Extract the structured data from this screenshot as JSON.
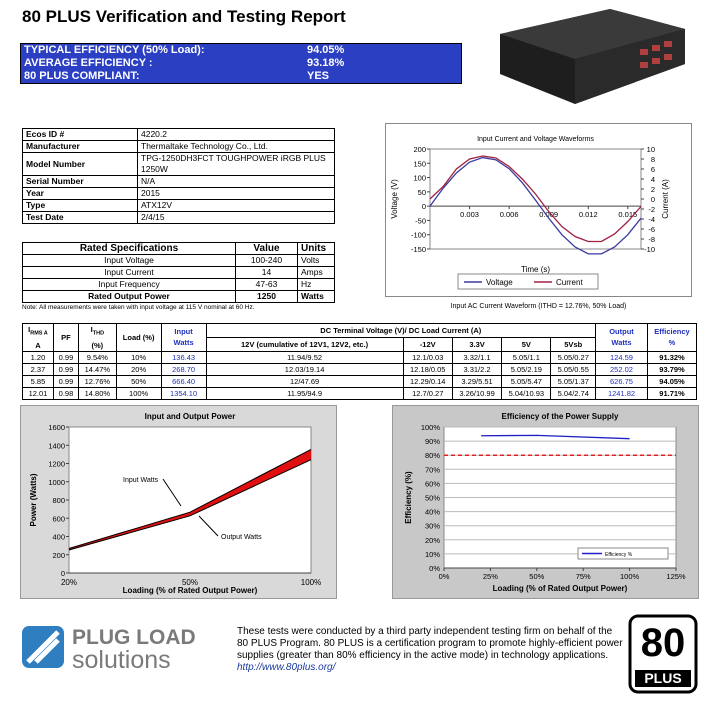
{
  "header": {
    "title": "80 PLUS Verification and Testing Report"
  },
  "summary": {
    "rows": [
      [
        "TYPICAL EFFICIENCY (50% Load):",
        "94.05%"
      ],
      [
        "AVERAGE EFFICIENCY :",
        "93.18%"
      ],
      [
        "80 PLUS COMPLIANT:",
        "YES"
      ]
    ]
  },
  "info_table": {
    "rows": [
      [
        "Ecos ID #",
        "4220.2"
      ],
      [
        "Manufacturer",
        "Thermaltake Technology Co., Ltd."
      ],
      [
        "Model Number",
        "TPG-1250DH3FCT TOUGHPOWER iRGB PLUS 1250W"
      ],
      [
        "Serial Number",
        "N/A"
      ],
      [
        "Year",
        "2015"
      ],
      [
        "Type",
        "ATX12V"
      ],
      [
        "Test Date",
        "2/4/15"
      ]
    ]
  },
  "rated_table": {
    "header": [
      "Rated Specifications",
      "Value",
      "Units"
    ],
    "rows": [
      [
        "Input Voltage",
        "100-240",
        "Volts"
      ],
      [
        "Input Current",
        "14",
        "Amps"
      ],
      [
        "Input Frequency",
        "47-63",
        "Hz"
      ],
      [
        "Rated Output Power",
        "1250",
        "Watts"
      ]
    ]
  },
  "note": "Note: All measurements were taken with input voltage at 115 V nominal at 60 Hz.",
  "waveform_caption": "Input AC Current Waveform (ITHD = 12.76%, 50% Load)",
  "test_table": {
    "head": {
      "irms": {
        "symbol": "I",
        "sub": "RMS A",
        "unit": "A"
      },
      "pf": "PF",
      "ithd": {
        "symbol": "I",
        "sub": "THD",
        "unit": "(%)"
      },
      "load": "Load (%)",
      "input": "Input Watts",
      "dc_group": "DC Terminal Voltage (V)/ DC Load Current (A)",
      "dc": [
        "12V (cumulative of 12V1, 12V2, etc.)",
        "-12V",
        "3.3V",
        "5V",
        "5Vsb"
      ],
      "output": "Output Watts",
      "efficiency": "Efficiency %"
    },
    "rows": [
      [
        "1.20",
        "0.99",
        "9.54%",
        "10%",
        "136.43",
        "11.94/9.52",
        "12.1/0.03",
        "3.32/1.1",
        "5.05/1.1",
        "5.05/0.27",
        "124.59",
        "91.32%"
      ],
      [
        "2.37",
        "0.99",
        "14.47%",
        "20%",
        "268.70",
        "12.03/19.14",
        "12.18/0.05",
        "3.31/2.2",
        "5.05/2.19",
        "5.05/0.55",
        "252.02",
        "93.79%"
      ],
      [
        "5.85",
        "0.99",
        "12.76%",
        "50%",
        "666.40",
        "12/47.69",
        "12.29/0.14",
        "3.29/5.51",
        "5.05/5.47",
        "5.05/1.37",
        "626.75",
        "94.05%"
      ],
      [
        "12.01",
        "0.98",
        "14.80%",
        "100%",
        "1354.10",
        "11.95/94.9",
        "12.7/0.27",
        "3.26/10.99",
        "5.04/10.93",
        "5.04/2.74",
        "1241.82",
        "91.71%"
      ]
    ]
  },
  "chart_data": [
    {
      "type": "line",
      "title": "Input Current and Voltage Waveforms",
      "x_label": "Time (s)",
      "y_label": "Voltage (V)",
      "y2_label": "Current (A)",
      "x": [
        0,
        0.001,
        0.002,
        0.003,
        0.004,
        0.005,
        0.006,
        0.007,
        0.008,
        0.009,
        0.01,
        0.011,
        0.012,
        0.013,
        0.014,
        0.015,
        0.016
      ],
      "xlim": [
        0,
        0.016
      ],
      "xticks": [
        0.003,
        0.006,
        0.009,
        0.012,
        0.015
      ],
      "ylim": [
        -150,
        200
      ],
      "yticks": [
        -150,
        -100,
        -50,
        0,
        50,
        100,
        150,
        200
      ],
      "y2lim": [
        -10,
        10
      ],
      "y2ticks": [
        -10,
        -8,
        -6,
        -4,
        -2,
        0,
        2,
        4,
        6,
        8,
        10
      ],
      "series": [
        {
          "name": "Voltage",
          "color": "#3a3aa0",
          "values": [
            0,
            63,
            116,
            154,
            170,
            162,
            131,
            82,
            21,
            -42,
            -100,
            -143,
            -167,
            -167,
            -143,
            -100,
            -42
          ]
        },
        {
          "name": "Current",
          "color": "#a02040",
          "axis": "y2",
          "values": [
            0,
            2.5,
            6,
            8,
            8.6,
            8.2,
            6.5,
            4,
            1,
            -2.5,
            -5.5,
            -7.5,
            -8.5,
            -8.5,
            -7,
            -4.5,
            -1.5
          ]
        }
      ],
      "legend": "bottom"
    },
    {
      "type": "line",
      "title": "Input and Output Power",
      "x_label": "Loading (% of Rated Output Power)",
      "y_label": "Power (Watts)",
      "categories": [
        "20%",
        "50%",
        "100%"
      ],
      "ylim": [
        0,
        1600
      ],
      "yticks": [
        0,
        200,
        400,
        600,
        800,
        1000,
        1200,
        1400,
        1600
      ],
      "band_color": "#e01010",
      "series": [
        {
          "name": "Input Watts",
          "color": "#000000",
          "values": [
            268.7,
            666.4,
            1354.1
          ]
        },
        {
          "name": "Output Watts",
          "color": "#000000",
          "values": [
            252.02,
            626.75,
            1241.82
          ]
        }
      ],
      "legend": "inline"
    },
    {
      "type": "line",
      "title": "Efficiency of the Power Supply",
      "x_label": "Loading (% of Rated Output Power)",
      "y_label": "Efficiency (%)",
      "x": [
        20,
        50,
        100
      ],
      "xlim": [
        0,
        125
      ],
      "xticks": [
        {
          "value": 0,
          "label": "0%"
        },
        {
          "value": 25,
          "label": "25%"
        },
        {
          "value": 50,
          "label": "50%"
        },
        {
          "value": 75,
          "label": "75%"
        },
        {
          "value": 100,
          "label": "100%"
        },
        {
          "value": 125,
          "label": "125%"
        }
      ],
      "ylim": [
        0,
        100
      ],
      "yticks": [
        {
          "value": 0,
          "label": "0%"
        },
        {
          "value": 10,
          "label": "10%"
        },
        {
          "value": 20,
          "label": "20%"
        },
        {
          "value": 30,
          "label": "30%"
        },
        {
          "value": 40,
          "label": "40%"
        },
        {
          "value": 50,
          "label": "50%"
        },
        {
          "value": 60,
          "label": "60%"
        },
        {
          "value": 70,
          "label": "70%"
        },
        {
          "value": 80,
          "label": "80%"
        },
        {
          "value": 90,
          "label": "90%"
        },
        {
          "value": 100,
          "label": "100%"
        }
      ],
      "grid": true,
      "threshold": {
        "value": 80,
        "color": "#e02020"
      },
      "series": [
        {
          "name": "Efficiency %",
          "color": "#2020c0",
          "values": [
            93.79,
            94.05,
            91.71
          ]
        }
      ],
      "legend": "lower right"
    }
  ],
  "footer": {
    "logo_top": "PLUG LOAD",
    "logo_bottom": "solutions",
    "text": "These tests were conducted by a third party independent testing firm on behalf of the 80 PLUS Program. 80 PLUS is a certification program to promote highly-efficient power supplies (greater than 80% efficiency in the active mode) in technology applications.",
    "link": "http://www.80plus.org/",
    "badge_number": "80",
    "badge_word": "PLUS"
  }
}
